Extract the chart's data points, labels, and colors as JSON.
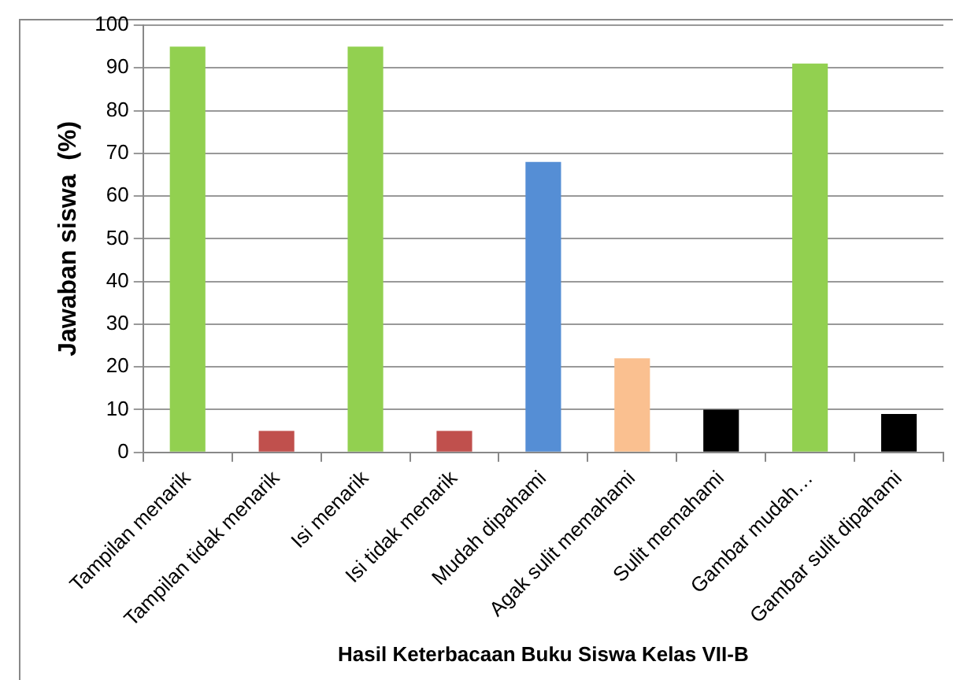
{
  "chart_data": {
    "type": "bar",
    "xlabel": "Hasil Keterbacaan Buku Siswa Kelas VII-B",
    "ylabel": "Jawaban siswa  (%)",
    "categories": [
      "Tampilan menarik",
      "Tampilan tidak menarik",
      "Isi menarik",
      "Isi tidak menarik",
      "Mudah dipahami",
      "Agak sulit memahami",
      "Sulit memahami",
      "Gambar mudah…",
      "Gambar sulit dipahami"
    ],
    "values": [
      95,
      5,
      95,
      5,
      68,
      22,
      10,
      91,
      9
    ],
    "colors": [
      "#92d050",
      "#c0504d",
      "#92d050",
      "#c0504d",
      "#558ed5",
      "#fac090",
      "#000000",
      "#92d050",
      "#000000"
    ],
    "ylim": [
      0,
      100
    ],
    "yticks": [
      0,
      10,
      20,
      30,
      40,
      50,
      60,
      70,
      80,
      90,
      100
    ],
    "grid": "y",
    "legend": false
  }
}
